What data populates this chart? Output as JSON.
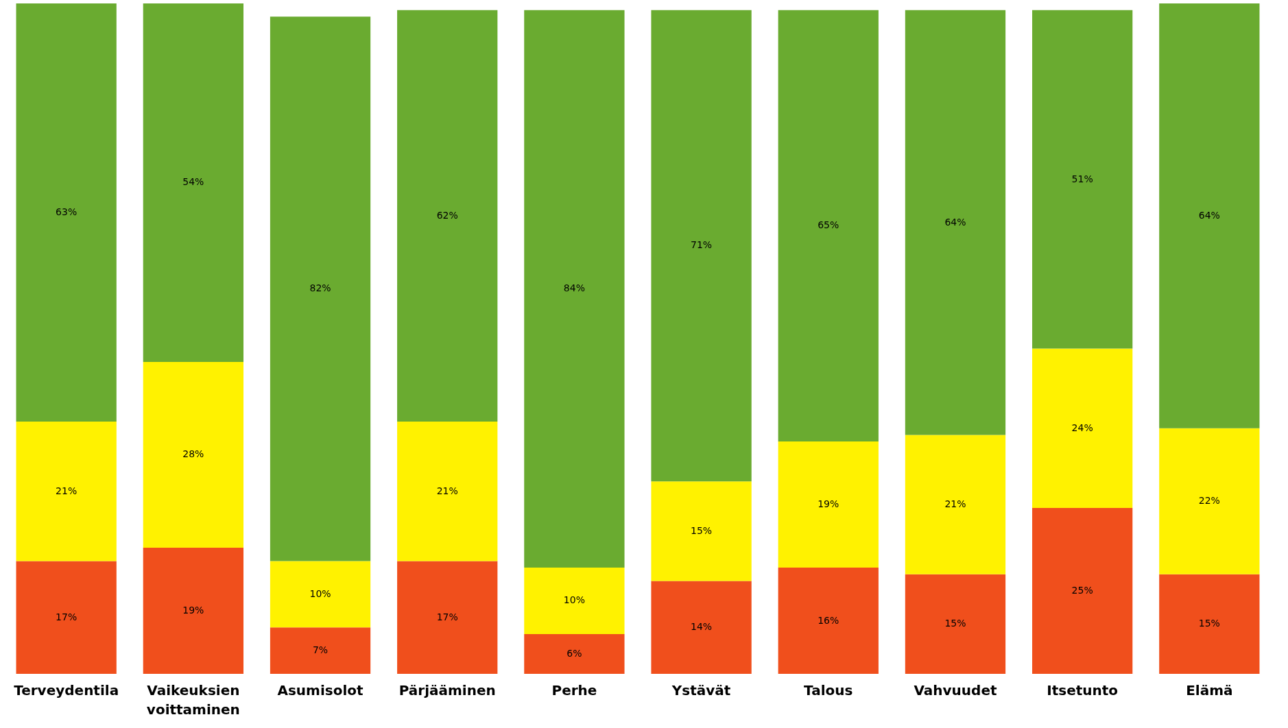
{
  "chart_data": {
    "type": "bar",
    "stacked": true,
    "grid": false,
    "categories": [
      "Terveydentila",
      "Vaikeuksien voittaminen",
      "Asumisolot",
      "Pärjääminen",
      "Perhe",
      "Ystävät",
      "Talous",
      "Vahvuudet",
      "Itsetunto",
      "Elämä"
    ],
    "series": [
      {
        "color": "#f04f1c",
        "values": [
          17,
          19,
          7,
          17,
          6,
          14,
          16,
          15,
          25,
          15
        ],
        "value_labels": [
          "17%",
          "19%",
          "7%",
          "17%",
          "6%",
          "14%",
          "16%",
          "15%",
          "25%",
          "15%"
        ]
      },
      {
        "color": "#fff200",
        "values": [
          21,
          28,
          10,
          21,
          10,
          15,
          19,
          21,
          24,
          22
        ],
        "value_labels": [
          "21%",
          "28%",
          "10%",
          "21%",
          "10%",
          "15%",
          "19%",
          "21%",
          "24%",
          "22%"
        ]
      },
      {
        "color": "#6aab30",
        "values": [
          63,
          54,
          82,
          62,
          84,
          71,
          65,
          64,
          51,
          64
        ],
        "value_labels": [
          "63%",
          "54%",
          "82%",
          "62%",
          "84%",
          "71%",
          "65%",
          "64%",
          "51%",
          "64%"
        ]
      }
    ]
  }
}
